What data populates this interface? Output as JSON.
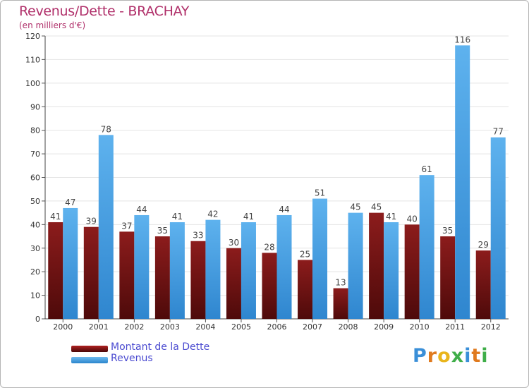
{
  "chart_data": {
    "type": "bar",
    "title": "Revenus/Dette - BRACHAY",
    "subtitle": "(en milliers d'€)",
    "categories": [
      "2000",
      "2001",
      "2002",
      "2003",
      "2004",
      "2005",
      "2006",
      "2007",
      "2008",
      "2009",
      "2010",
      "2011",
      "2012"
    ],
    "series": [
      {
        "name": "Montant de la Dette",
        "values": [
          41,
          39,
          37,
          35,
          33,
          30,
          28,
          25,
          13,
          45,
          40,
          35,
          29
        ],
        "color": "#7a1414"
      },
      {
        "name": "Revenus",
        "values": [
          47,
          78,
          44,
          41,
          42,
          41,
          44,
          51,
          45,
          41,
          61,
          116,
          77
        ],
        "color": "#4aa3e6"
      }
    ],
    "ylim": [
      0,
      120
    ],
    "yticks": [
      0,
      10,
      20,
      30,
      40,
      50,
      60,
      70,
      80,
      90,
      100,
      110,
      120
    ],
    "grid": true,
    "legend": "bottom-left"
  },
  "logo": {
    "letters": [
      "P",
      "r",
      "o",
      "x",
      "i",
      "t",
      "i"
    ],
    "colors": [
      "#3a8fd8",
      "#e07a1e",
      "#e9b51c",
      "#3fae49",
      "#3a8fd8",
      "#e07a1e",
      "#3fae49"
    ]
  }
}
